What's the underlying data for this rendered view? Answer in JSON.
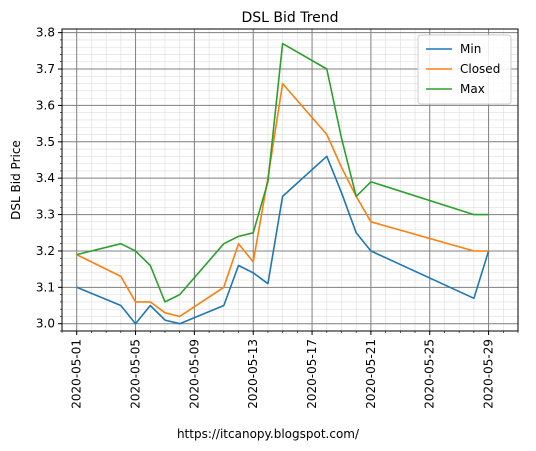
{
  "chart_data": {
    "type": "line",
    "title": "DSL Bid Trend",
    "xlabel": "",
    "ylabel": "DSL Bid Price",
    "ylim": [
      2.98,
      3.81
    ],
    "xlim": [
      "2020-04-30",
      "2020-05-31"
    ],
    "x_ticks": [
      "2020-05-01",
      "2020-05-05",
      "2020-05-09",
      "2020-05-13",
      "2020-05-17",
      "2020-05-21",
      "2020-05-25",
      "2020-05-29"
    ],
    "y_ticks": [
      "3.0",
      "3.1",
      "3.2",
      "3.3",
      "3.4",
      "3.5",
      "3.6",
      "3.7",
      "3.8"
    ],
    "grid": true,
    "legend_position": "top-right",
    "x": [
      "2020-05-01",
      "2020-05-04",
      "2020-05-05",
      "2020-05-06",
      "2020-05-07",
      "2020-05-08",
      "2020-05-11",
      "2020-05-12",
      "2020-05-13",
      "2020-05-14",
      "2020-05-15",
      "2020-05-18",
      "2020-05-19",
      "2020-05-20",
      "2020-05-21",
      "2020-05-28",
      "2020-05-29"
    ],
    "series": [
      {
        "name": "Min",
        "color": "#1f77b4",
        "values": [
          3.1,
          3.05,
          3.0,
          3.05,
          3.01,
          3.0,
          3.05,
          3.16,
          3.14,
          3.11,
          3.35,
          3.46,
          3.36,
          3.25,
          3.2,
          3.07,
          3.2
        ]
      },
      {
        "name": "Closed",
        "color": "#ff7f0e",
        "values": [
          3.19,
          3.13,
          3.06,
          3.06,
          3.03,
          3.02,
          3.1,
          3.22,
          3.17,
          3.4,
          3.66,
          3.52,
          3.43,
          3.35,
          3.28,
          3.2,
          3.2
        ]
      },
      {
        "name": "Max",
        "color": "#2ca02c",
        "values": [
          3.19,
          3.22,
          3.2,
          3.16,
          3.06,
          3.08,
          3.22,
          3.24,
          3.25,
          3.39,
          3.77,
          3.7,
          3.51,
          3.35,
          3.39,
          3.3,
          3.3
        ]
      }
    ]
  },
  "footer": {
    "text": "https://itcanopy.blogspot.com/"
  }
}
